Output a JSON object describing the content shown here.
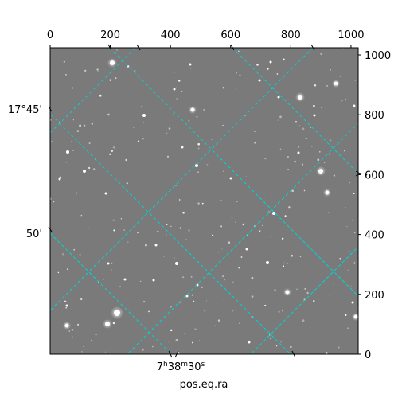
{
  "figure": {
    "xlabel": "pos.eq.ra",
    "ylabel": "",
    "colors": {
      "grid": "#00d4d4",
      "background": "#7a7a7a",
      "frame": "#000000"
    }
  },
  "pixel_axes": {
    "top_ticks": [
      "0",
      "200",
      "400",
      "600",
      "800",
      "1000"
    ],
    "top_values": [
      0,
      200,
      400,
      600,
      800,
      1000
    ],
    "right_ticks": [
      "0",
      "200",
      "400",
      "600",
      "800",
      "1000"
    ],
    "right_values": [
      0,
      200,
      400,
      600,
      800,
      1000
    ],
    "xlim": [
      0,
      1024
    ],
    "ylim": [
      0,
      1024
    ]
  },
  "world_axes": {
    "ra_labels": [
      {
        "h": "7",
        "m": "38",
        "s": "30"
      }
    ],
    "dec_labels": [
      "17°45'",
      "50'"
    ]
  },
  "image": {
    "stars_seed": 17
  }
}
